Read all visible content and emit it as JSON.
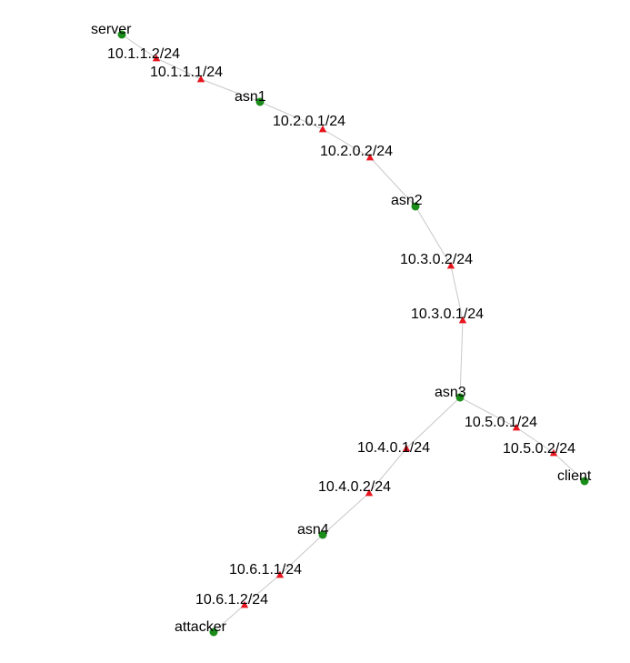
{
  "colors": {
    "host_node": "#1a8c1a",
    "interface_node": "#e8141e",
    "edge": "#c8c8c8",
    "label": "#000000"
  },
  "nodes": [
    {
      "id": "server",
      "label": "server",
      "kind": "host"
    },
    {
      "id": "if_10_1_1_2",
      "label": "10.1.1.2/24",
      "kind": "interface"
    },
    {
      "id": "if_10_1_1_1",
      "label": "10.1.1.1/24",
      "kind": "interface"
    },
    {
      "id": "asn1",
      "label": "asn1",
      "kind": "host"
    },
    {
      "id": "if_10_2_0_1",
      "label": "10.2.0.1/24",
      "kind": "interface"
    },
    {
      "id": "if_10_2_0_2",
      "label": "10.2.0.2/24",
      "kind": "interface"
    },
    {
      "id": "asn2",
      "label": "asn2",
      "kind": "host"
    },
    {
      "id": "if_10_3_0_2",
      "label": "10.3.0.2/24",
      "kind": "interface"
    },
    {
      "id": "if_10_3_0_1",
      "label": "10.3.0.1/24",
      "kind": "interface"
    },
    {
      "id": "asn3",
      "label": "asn3",
      "kind": "host"
    },
    {
      "id": "if_10_5_0_1",
      "label": "10.5.0.1/24",
      "kind": "interface"
    },
    {
      "id": "if_10_5_0_2",
      "label": "10.5.0.2/24",
      "kind": "interface"
    },
    {
      "id": "client",
      "label": "client",
      "kind": "host"
    },
    {
      "id": "if_10_4_0_1",
      "label": "10.4.0.1/24",
      "kind": "interface"
    },
    {
      "id": "if_10_4_0_2",
      "label": "10.4.0.2/24",
      "kind": "interface"
    },
    {
      "id": "asn4",
      "label": "asn4",
      "kind": "host"
    },
    {
      "id": "if_10_6_1_1",
      "label": "10.6.1.1/24",
      "kind": "interface"
    },
    {
      "id": "if_10_6_1_2",
      "label": "10.6.1.2/24",
      "kind": "interface"
    },
    {
      "id": "attacker",
      "label": "attacker",
      "kind": "host"
    }
  ],
  "edges": [
    [
      "server",
      "if_10_1_1_2"
    ],
    [
      "if_10_1_1_2",
      "if_10_1_1_1"
    ],
    [
      "if_10_1_1_1",
      "asn1"
    ],
    [
      "asn1",
      "if_10_2_0_1"
    ],
    [
      "if_10_2_0_1",
      "if_10_2_0_2"
    ],
    [
      "if_10_2_0_2",
      "asn2"
    ],
    [
      "asn2",
      "if_10_3_0_2"
    ],
    [
      "if_10_3_0_2",
      "if_10_3_0_1"
    ],
    [
      "if_10_3_0_1",
      "asn3"
    ],
    [
      "asn3",
      "if_10_5_0_1"
    ],
    [
      "if_10_5_0_1",
      "if_10_5_0_2"
    ],
    [
      "if_10_5_0_2",
      "client"
    ],
    [
      "asn3",
      "if_10_4_0_1"
    ],
    [
      "if_10_4_0_1",
      "if_10_4_0_2"
    ],
    [
      "if_10_4_0_2",
      "asn4"
    ],
    [
      "asn4",
      "if_10_6_1_1"
    ],
    [
      "if_10_6_1_1",
      "if_10_6_1_2"
    ],
    [
      "if_10_6_1_2",
      "attacker"
    ]
  ]
}
